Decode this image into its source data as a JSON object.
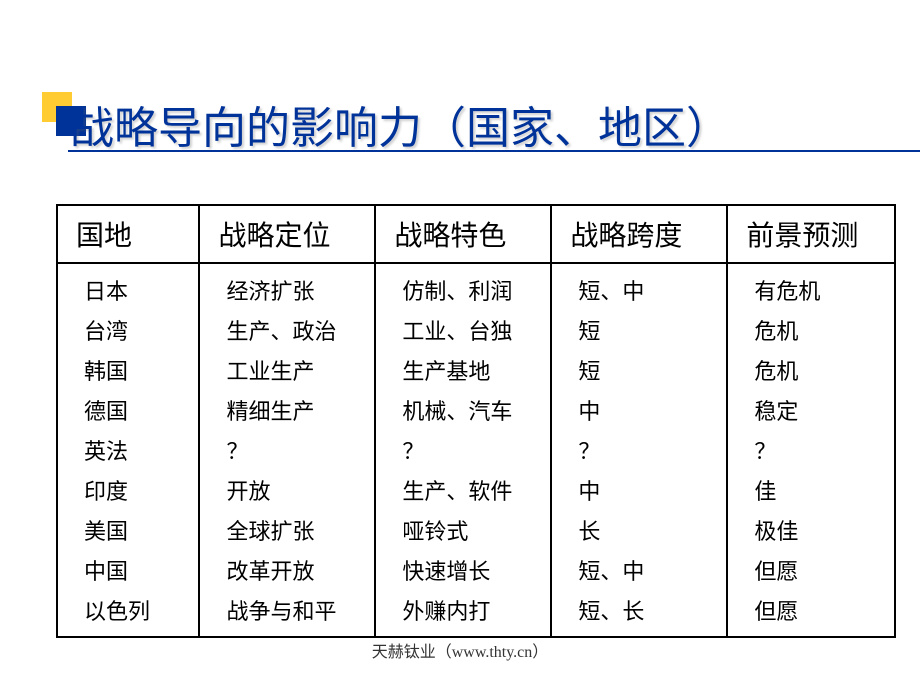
{
  "title": "战略导向的影响力（国家、地区）",
  "colors": {
    "title_color": "#003399",
    "bullet_yellow": "#ffcc33",
    "bullet_blue": "#003399",
    "underline": "#003399",
    "border": "#000000",
    "text": "#000000"
  },
  "table": {
    "columns": [
      "国地",
      "战略定位",
      "战略特色",
      "战略跨度",
      "前景预测"
    ],
    "rows": [
      [
        "日本",
        "经济扩张",
        "仿制、利润",
        "短、中",
        "有危机"
      ],
      [
        "台湾",
        "生产、政治",
        "工业、台独",
        "短",
        "危机"
      ],
      [
        "韩国",
        "工业生产",
        "生产基地",
        "短",
        "危机"
      ],
      [
        "德国",
        "精细生产",
        "机械、汽车",
        "中",
        "稳定"
      ],
      [
        "英法",
        "？",
        "？",
        "？",
        "？"
      ],
      [
        "印度",
        "开放",
        "生产、软件",
        "中",
        "佳"
      ],
      [
        "美国",
        "全球扩张",
        "哑铃式",
        "长",
        "极佳"
      ],
      [
        "中国",
        "改革开放",
        "快速增长",
        "短、中",
        "但愿"
      ],
      [
        "以色列",
        "战争与和平",
        "外赚内打",
        "短、长",
        "但愿"
      ]
    ]
  },
  "footer": "天赫钛业（www.thty.cn）"
}
